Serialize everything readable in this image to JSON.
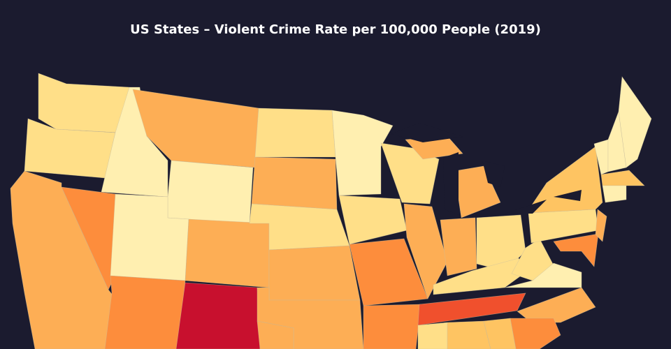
{
  "chart_data": {
    "type": "choropleth",
    "title": "US States – Violent Crime Rate per 100,000 People (2019)"
  }
}
